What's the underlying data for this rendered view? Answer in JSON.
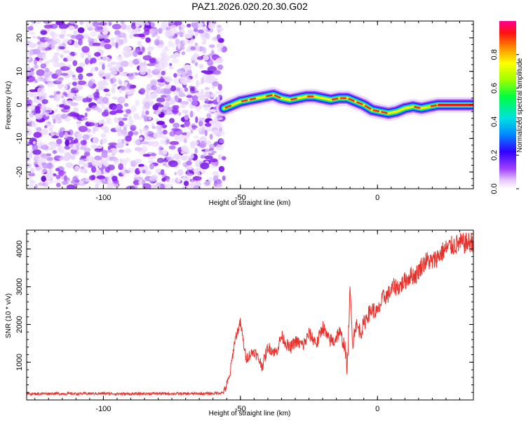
{
  "title": "PAZ1.2026.020.20.30.G02",
  "colors": {
    "snr_line": "#e8302a",
    "axis": "#000000",
    "background": "#ffffff"
  },
  "chart_data": [
    {
      "type": "heatmap",
      "name": "spectrogram",
      "xlabel": "Height of straight line (km)",
      "ylabel": "Frequency (Hz)",
      "xlim": [
        -128,
        35
      ],
      "ylim": [
        -25,
        25
      ],
      "xticks": [
        -100,
        -50,
        0
      ],
      "yticks": [
        -20,
        -10,
        0,
        10,
        20
      ],
      "noise_region_x": [
        -128,
        -56
      ],
      "signal_ridge": {
        "x": [
          -56,
          -53,
          -50,
          -47,
          -44,
          -41,
          -38,
          -35,
          -32,
          -29,
          -26,
          -23,
          -20,
          -17,
          -14,
          -11,
          -8,
          -5,
          -2,
          1,
          4,
          7,
          10,
          13,
          16,
          19,
          22,
          25,
          28,
          31,
          35
        ],
        "freq_hz": [
          -1,
          0,
          1,
          1.5,
          2,
          2.5,
          3,
          2,
          1.5,
          2,
          2.5,
          2.5,
          2,
          1.5,
          2,
          2,
          1,
          0,
          -1.5,
          -2,
          -2.5,
          -2,
          -1,
          -0.5,
          -1,
          -0.5,
          0,
          0,
          0,
          0,
          0
        ]
      },
      "colorbar": {
        "label": "Normalized spectral amplitude",
        "ticks": [
          "0.0",
          "0.2",
          "0.4",
          "0.6",
          "0.8"
        ],
        "range": [
          0,
          1
        ]
      }
    },
    {
      "type": "line",
      "name": "snr",
      "xlabel": "Height of straight line (km)",
      "ylabel": "SNR (10 * v/v)",
      "xlim": [
        -128,
        35
      ],
      "ylim": [
        0,
        4500
      ],
      "xticks": [
        -100,
        -50,
        0
      ],
      "yticks": [
        1000,
        2000,
        3000,
        4000
      ],
      "series": [
        {
          "name": "SNR",
          "x": [
            -128,
            -120,
            -110,
            -100,
            -90,
            -80,
            -70,
            -60,
            -56,
            -54,
            -52,
            -50,
            -48,
            -45,
            -42,
            -40,
            -37,
            -35,
            -32,
            -30,
            -27,
            -25,
            -22,
            -20,
            -18,
            -16,
            -14,
            -12,
            -11,
            -10,
            -9,
            -8,
            -6,
            -4,
            -2,
            0,
            2,
            4,
            6,
            8,
            10,
            12,
            14,
            16,
            18,
            20,
            22,
            24,
            26,
            28,
            30,
            32,
            35
          ],
          "values": [
            160,
            170,
            165,
            170,
            160,
            170,
            165,
            170,
            200,
            600,
            1600,
            2050,
            1100,
            1300,
            900,
            1400,
            1250,
            1700,
            1350,
            1550,
            1450,
            1750,
            1500,
            1950,
            1600,
            1550,
            1800,
            1450,
            800,
            2900,
            1500,
            2000,
            1800,
            2200,
            2400,
            2300,
            2700,
            2800,
            3000,
            3000,
            3150,
            3300,
            3300,
            3550,
            3700,
            3650,
            3800,
            3950,
            4050,
            4100,
            4150,
            4150,
            4200
          ]
        }
      ]
    }
  ]
}
